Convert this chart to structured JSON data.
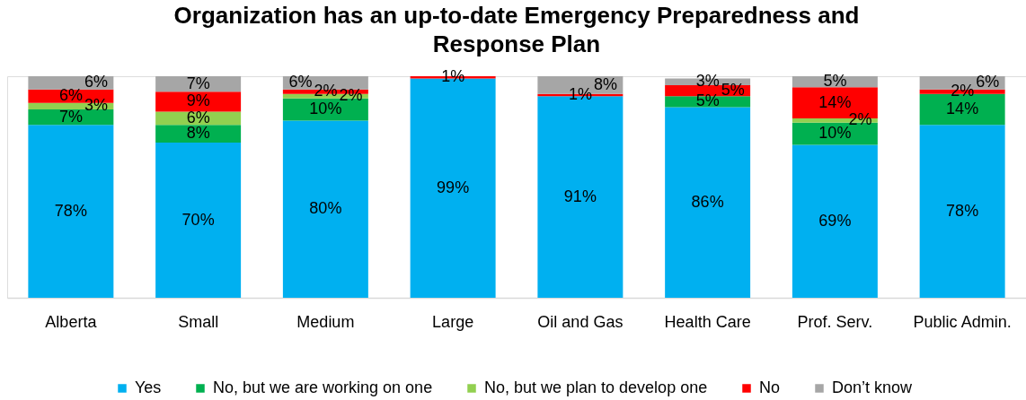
{
  "chart_data": {
    "type": "bar",
    "title": "Organization has an up-to-date Emergency Preparedness and Response Plan",
    "categories": [
      "Alberta",
      "Small",
      "Medium",
      "Large",
      "Oil and Gas",
      "Health Care",
      "Prof. Serv.",
      "Public Admin."
    ],
    "stacked": true,
    "legend": "bottom",
    "tick_labels": "x",
    "series": [
      {
        "name": "Yes",
        "color": "#00b0f0",
        "values": [
          78,
          70,
          80,
          99,
          91,
          86,
          69,
          78
        ],
        "value_labels": [
          "78%",
          "70%",
          "80%",
          "99%",
          "91%",
          "86%",
          "69%",
          "78%"
        ]
      },
      {
        "name": "No, but we are working on one",
        "color": "#00b050",
        "values": [
          7,
          8,
          10,
          null,
          null,
          5,
          10,
          14
        ],
        "value_labels": [
          "7%",
          "8%",
          "10%",
          null,
          null,
          "5%",
          "10%",
          "14%"
        ]
      },
      {
        "name": "No, but we plan to develop one",
        "color": "#92d050",
        "values": [
          3,
          6,
          2,
          null,
          null,
          null,
          2,
          null
        ],
        "value_labels": [
          "3%",
          "6%",
          "2%",
          null,
          null,
          null,
          "2%",
          null
        ]
      },
      {
        "name": "No",
        "color": "#ff0000",
        "values": [
          6,
          9,
          2,
          1,
          1,
          5,
          14,
          2
        ],
        "value_labels": [
          "6%",
          "9%",
          "2%",
          "1%",
          "1%",
          "5%",
          "14%",
          "2%"
        ]
      },
      {
        "name": "Don’t know",
        "color": "#a6a6a6",
        "values": [
          6,
          7,
          6,
          null,
          8,
          3,
          5,
          6
        ],
        "value_labels": [
          "6%",
          "7%",
          "6%",
          null,
          "8%",
          "3%",
          "5%",
          "6%"
        ]
      }
    ]
  }
}
